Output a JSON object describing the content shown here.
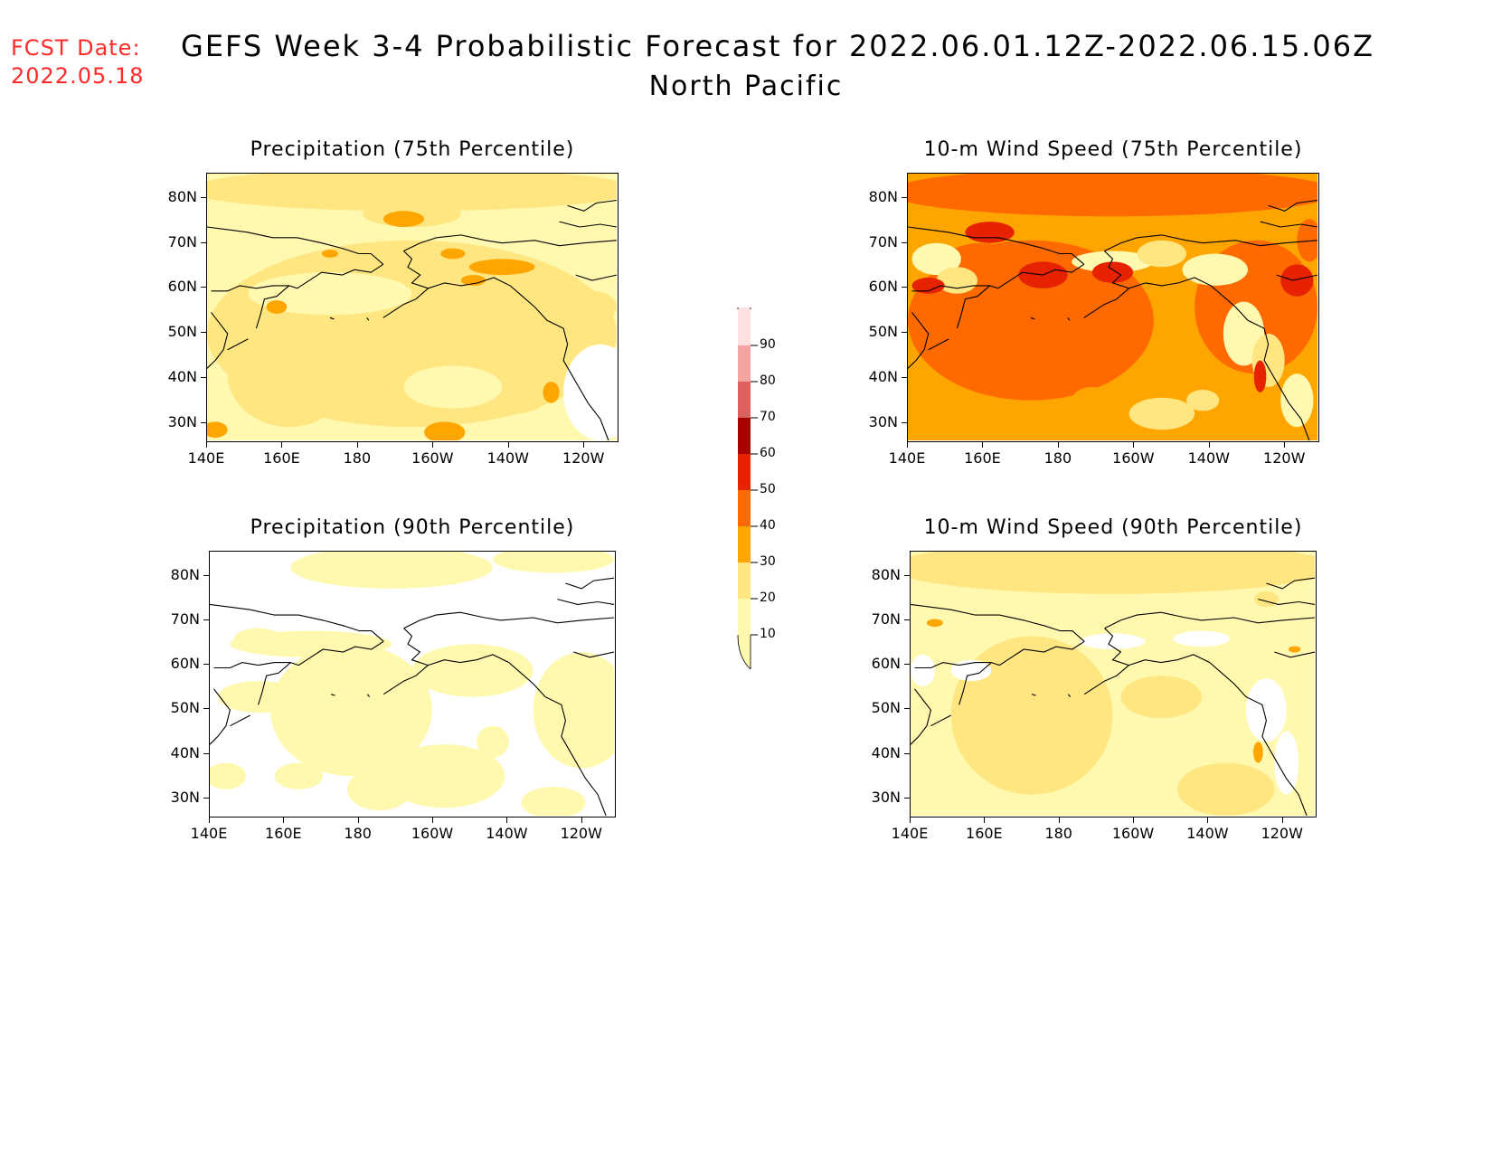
{
  "header": {
    "fcst_label": "FCST Date:",
    "fcst_date": "2022.05.18",
    "title": "GEFS Week 3-4 Probabilistic Forecast for 2022.06.01.12Z-2022.06.15.06Z",
    "subtitle": "North Pacific"
  },
  "axes": {
    "x_ticks": [
      "140E",
      "160E",
      "180",
      "160W",
      "140W",
      "120W"
    ],
    "y_ticks": [
      "80N",
      "70N",
      "60N",
      "50N",
      "40N",
      "30N"
    ]
  },
  "panels": [
    {
      "title": "Precipitation (75th Percentile)",
      "field": "precip75"
    },
    {
      "title": "10-m Wind Speed (75th Percentile)",
      "field": "wind75"
    },
    {
      "title": "Precipitation (90th Percentile)",
      "field": "precip90"
    },
    {
      "title": "10-m Wind Speed (90th Percentile)",
      "field": "wind90"
    }
  ],
  "colorbar": {
    "labels": [
      "10",
      "20",
      "30",
      "40",
      "50",
      "60",
      "70",
      "80",
      "90"
    ],
    "colors": [
      "#fff9b0",
      "#ffe680",
      "#ffa500",
      "#ff6a00",
      "#e62200",
      "#a80000",
      "#e06060",
      "#f5a4a4",
      "#ffe0e0"
    ]
  },
  "colors": {
    "fcst_red": "#ff2a2a",
    "land": "#ffffff"
  }
}
